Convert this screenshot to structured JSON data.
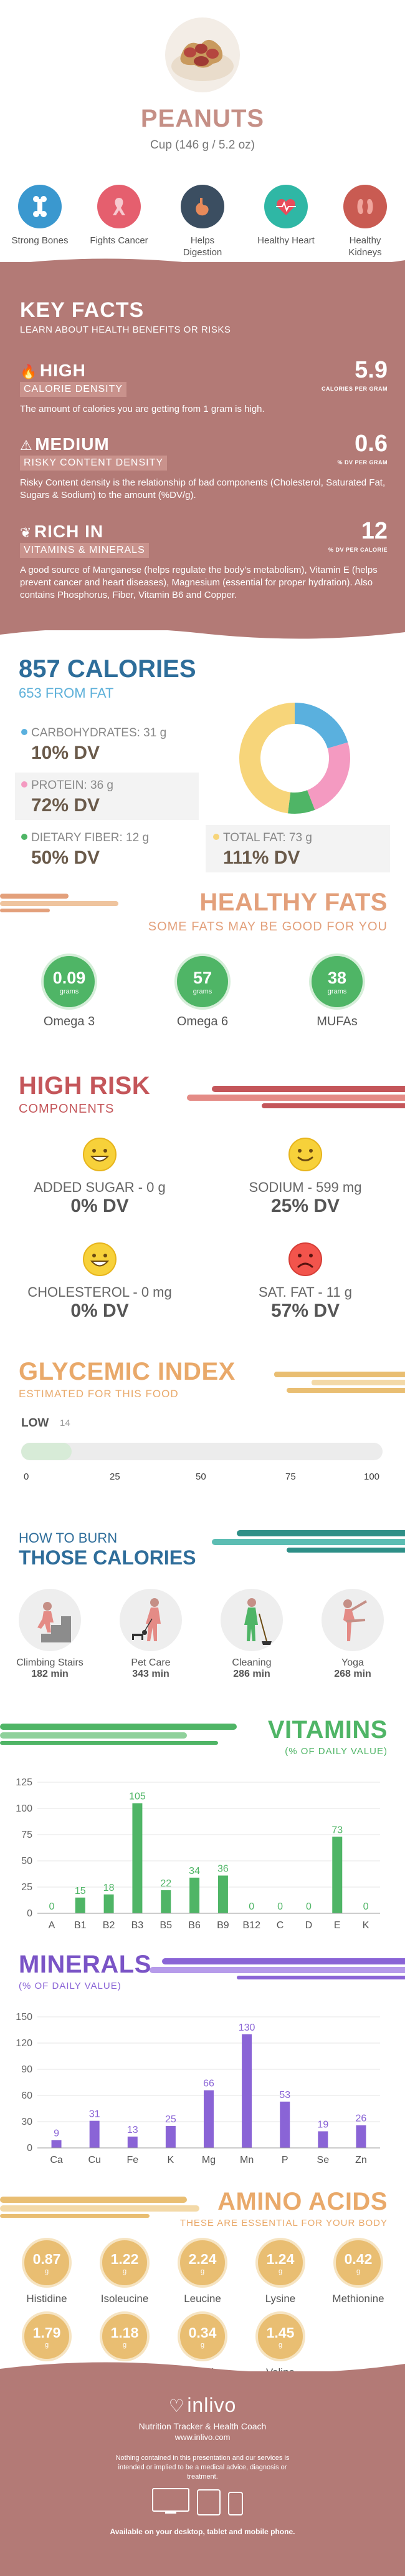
{
  "header": {
    "title": "PEANUTS",
    "serving": "Cup (146 g / 5.2 oz)",
    "benefits": [
      {
        "label": "Strong Bones",
        "icon": "bone-icon",
        "color": "#3a98cf"
      },
      {
        "label": "Fights Cancer",
        "icon": "ribbon-icon",
        "color": "#e55f6e"
      },
      {
        "label": "Helps Digestion",
        "icon": "stomach-icon",
        "color": "#3b4e61"
      },
      {
        "label": "Healthy Heart",
        "icon": "heart-icon",
        "color": "#2fb7a5"
      },
      {
        "label": "Healthy Kidneys",
        "icon": "kidney-icon",
        "color": "#c95b52"
      }
    ]
  },
  "key_facts": {
    "title": "KEY FACTS",
    "subtitle": "LEARN ABOUT HEALTH BENEFITS OR RISKS",
    "calorie": {
      "level": "HIGH",
      "tag": "CALORIE DENSITY",
      "desc": "The amount of calories you are getting from 1 gram is high.",
      "value": "5.9",
      "unit": "CALORIES PER GRAM"
    },
    "risky": {
      "level": "MEDIUM",
      "tag": "RISKY CONTENT DENSITY",
      "desc": "Risky Content density is the relationship of bad components (Cholesterol, Saturated Fat, Sugars & Sodium) to the amount (%DV/g).",
      "value": "0.6",
      "unit": "% DV PER GRAM"
    },
    "vitamins": {
      "level": "RICH IN",
      "tag": "VITAMINS & MINERALS",
      "desc": "A good source of Manganese (helps regulate the body's metabolism), Vitamin E (helps prevent cancer and heart diseases), Magnesium (essential for proper hydration). Also contains Phosphorus, Fiber, Vitamin B6 and Copper.",
      "value": "12",
      "unit": "% DV PER CALORIE"
    }
  },
  "calories": {
    "title": "857 CALORIES",
    "from_fat": "653 FROM FAT",
    "macros": [
      {
        "label": "CARBOHYDRATES: 31 g",
        "dv": "10% DV",
        "color": "#5ab0de"
      },
      {
        "label": "PROTEIN: 36 g",
        "dv": "72% DV",
        "color": "#f49ac1"
      },
      {
        "label": "DIETARY FIBER: 12 g",
        "dv": "50% DV",
        "color": "#4fb566"
      },
      {
        "label": "TOTAL FAT: 73 g",
        "dv": "111% DV",
        "color": "#f7d57a"
      }
    ],
    "donut": [
      {
        "value": 31,
        "color": "#5ab0de"
      },
      {
        "value": 36,
        "color": "#f49ac1"
      },
      {
        "value": 12,
        "color": "#4fb566"
      },
      {
        "value": 73,
        "color": "#f7d57a"
      }
    ]
  },
  "healthy_fats": {
    "title": "HEALTHY FATS",
    "subtitle": "SOME FATS MAY BE GOOD FOR YOU",
    "items": [
      {
        "value": "0.09",
        "unit": "grams",
        "name": "Omega 3"
      },
      {
        "value": "57",
        "unit": "grams",
        "name": "Omega 6"
      },
      {
        "value": "38",
        "unit": "grams",
        "name": "MUFAs"
      }
    ]
  },
  "high_risk": {
    "title": "HIGH RISK",
    "subtitle": "COMPONENTS",
    "items": [
      {
        "name": "ADDED SUGAR - 0 g",
        "dv": "0% DV",
        "mood": "happy"
      },
      {
        "name": "SODIUM - 599 mg",
        "dv": "25% DV",
        "mood": "neutral"
      },
      {
        "name": "CHOLESTEROL - 0 mg",
        "dv": "0% DV",
        "mood": "happy"
      },
      {
        "name": "SAT. FAT - 11 g",
        "dv": "57% DV",
        "mood": "sad"
      }
    ]
  },
  "glycemic": {
    "title": "GLYCEMIC INDEX",
    "subtitle": "ESTIMATED FOR THIS FOOD",
    "level": "LOW",
    "value": 14,
    "value_label": "14",
    "ticks": [
      "0",
      "25",
      "50",
      "75",
      "100"
    ]
  },
  "burn": {
    "title_small": "HOW TO BURN",
    "title_big": "THOSE CALORIES",
    "items": [
      {
        "name": "Climbing Stairs",
        "minutes": "182 min",
        "icon": "stairs-icon"
      },
      {
        "name": "Pet Care",
        "minutes": "343 min",
        "icon": "dog-walking-icon"
      },
      {
        "name": "Cleaning",
        "minutes": "286 min",
        "icon": "cleaning-icon"
      },
      {
        "name": "Yoga",
        "minutes": "268 min",
        "icon": "yoga-icon"
      }
    ]
  },
  "vitamins_title": "VITAMINS",
  "vitamins_sub": "(% OF DAILY VALUE)",
  "minerals_title": "MINERALS",
  "minerals_sub": "(% OF DAILY VALUE)",
  "chart_data": [
    {
      "type": "bar",
      "title": "VITAMINS",
      "subtitle": "(% OF DAILY VALUE)",
      "categories": [
        "A",
        "B1",
        "B2",
        "B3",
        "B5",
        "B6",
        "B9",
        "B12",
        "C",
        "D",
        "E",
        "K"
      ],
      "values": [
        0,
        15,
        18,
        105,
        22,
        34,
        36,
        0,
        0,
        0,
        73,
        0
      ],
      "ylim": [
        0,
        125
      ],
      "yticks": [
        0,
        25,
        50,
        75,
        100,
        125
      ],
      "grid": true,
      "color": "#4fb566"
    },
    {
      "type": "bar",
      "title": "MINERALS",
      "subtitle": "(% OF DAILY VALUE)",
      "categories": [
        "Ca",
        "Cu",
        "Fe",
        "K",
        "Mg",
        "Mn",
        "P",
        "Se",
        "Zn"
      ],
      "values": [
        9,
        31,
        13,
        25,
        66,
        130,
        53,
        19,
        26
      ],
      "ylim": [
        0,
        150
      ],
      "yticks": [
        0,
        30,
        60,
        90,
        120,
        150
      ],
      "grid": true,
      "color": "#8a64d6"
    }
  ],
  "amino": {
    "title": "AMINO ACIDS",
    "subtitle": "THESE ARE ESSENTIAL FOR YOUR BODY",
    "items": [
      {
        "value": "0.87",
        "unit": "g",
        "name": "Histidine"
      },
      {
        "value": "1.22",
        "unit": "g",
        "name": "Isoleucine"
      },
      {
        "value": "2.24",
        "unit": "g",
        "name": "Leucine"
      },
      {
        "value": "1.24",
        "unit": "g",
        "name": "Lysine"
      },
      {
        "value": "0.42",
        "unit": "g",
        "name": "Methionine"
      },
      {
        "value": "1.79",
        "unit": "g",
        "name": "Phenylalanine"
      },
      {
        "value": "1.18",
        "unit": "g",
        "name": "Threonine"
      },
      {
        "value": "0.34",
        "unit": "g",
        "name": "Tryptophan"
      },
      {
        "value": "1.45",
        "unit": "g",
        "name": "Valine"
      }
    ]
  },
  "footer": {
    "brand": "inlivo",
    "tagline": "Nutrition Tracker & Health Coach",
    "url": "www.inlivo.com",
    "disclaimer": "Nothing contained in this presentation and our services is intended or implied to be a medical advice, diagnosis or treatment.",
    "available": "Available on your desktop, tablet and mobile phone."
  }
}
